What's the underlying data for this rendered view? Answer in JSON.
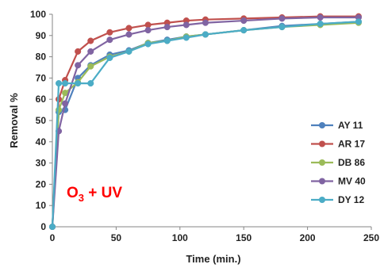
{
  "chart_data": {
    "type": "line",
    "title": "",
    "xlabel": "Time (min.)",
    "ylabel": "Removal %",
    "xlim": [
      0,
      250
    ],
    "ylim": [
      0,
      100
    ],
    "xticks": [
      0,
      50,
      100,
      150,
      200,
      250
    ],
    "yticks": [
      0,
      10,
      20,
      30,
      40,
      50,
      60,
      70,
      80,
      90,
      100
    ],
    "grid": false,
    "legend_position": "right",
    "annotation": {
      "main": "O",
      "subscript": "3",
      "rest": " + UV",
      "color": "#ff0000"
    },
    "x": [
      0,
      5,
      10,
      20,
      30,
      45,
      60,
      75,
      90,
      105,
      120,
      150,
      180,
      210,
      240
    ],
    "series": [
      {
        "name": "AY 11",
        "color": "#4f81bd",
        "values": [
          0,
          54,
          55,
          70,
          76,
          81,
          83,
          86.5,
          88,
          89.5,
          90.5,
          92.5,
          94.5,
          95.5,
          96.5
        ]
      },
      {
        "name": "AR 17",
        "color": "#c0504d",
        "values": [
          0,
          60,
          69,
          82.5,
          87.5,
          91.5,
          93.5,
          95,
          96,
          97,
          97.5,
          98,
          98.5,
          99,
          99
        ]
      },
      {
        "name": "DB 86",
        "color": "#9bbb59",
        "values": [
          0,
          55,
          63,
          68,
          75.5,
          80,
          82.5,
          86.5,
          87.5,
          89.5,
          90.5,
          92.5,
          94,
          95,
          96
        ]
      },
      {
        "name": "MV 40",
        "color": "#8064a2",
        "values": [
          0,
          45,
          58,
          76,
          82.5,
          88,
          90.5,
          92.5,
          94,
          95,
          96,
          97,
          98,
          98.5,
          98.5
        ]
      },
      {
        "name": "DY 12",
        "color": "#4bacc6",
        "values": [
          0,
          67.5,
          67.5,
          67.5,
          67.5,
          79.5,
          82.5,
          86,
          87.5,
          89,
          90.5,
          92.5,
          94,
          95.5,
          96.5
        ]
      }
    ]
  }
}
